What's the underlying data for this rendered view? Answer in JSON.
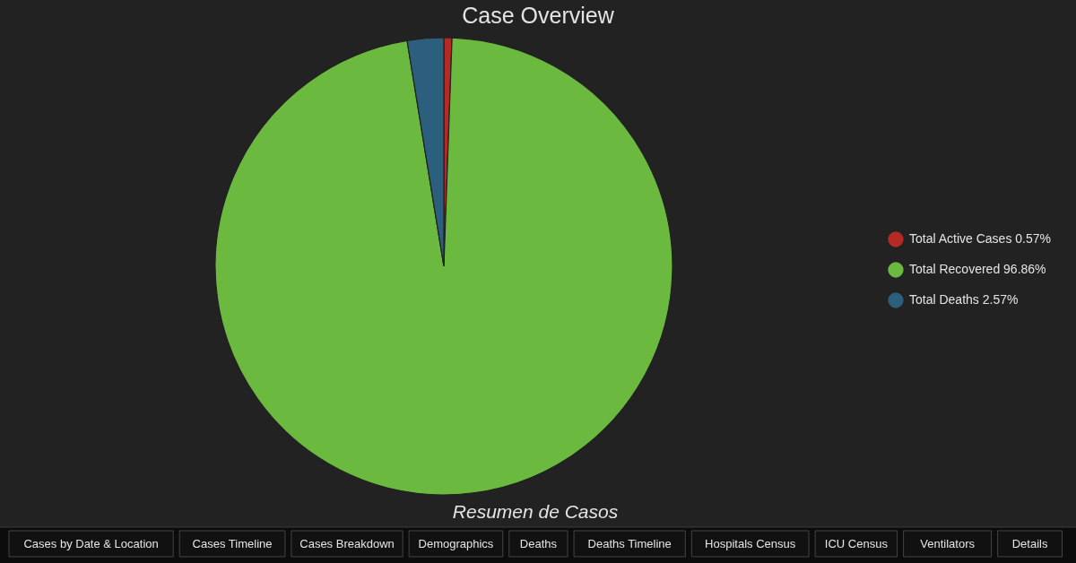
{
  "chart_data": {
    "type": "pie",
    "title": "Case Overview",
    "subtitle": "Resumen de Casos",
    "categories": [
      "Total Active Cases",
      "Total Recovered",
      "Total Deaths"
    ],
    "values": [
      0.57,
      96.86,
      2.57
    ],
    "colors": [
      "#b52a24",
      "#6bb93f",
      "#2c5f7d"
    ],
    "value_labels": [
      "0.57%",
      "96.86%",
      "2.57%"
    ],
    "legend": "right",
    "annotations": [
      "Cases by Date & Location",
      "Cases Timeline",
      "Cases Breakdown",
      "Demographics",
      "Deaths",
      "Deaths Timeline",
      "Hospitals Census",
      "ICU Census",
      "Ventilators",
      "Details"
    ]
  }
}
